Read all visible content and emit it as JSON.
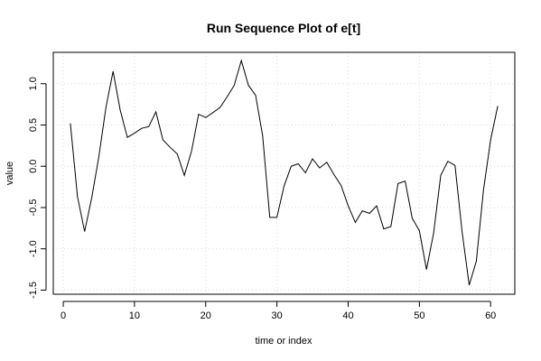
{
  "chart_data": {
    "type": "line",
    "title": "Run Sequence Plot of e[t]",
    "xlabel": "time or index",
    "ylabel": "value",
    "xlim": [
      -1.4,
      63.4
    ],
    "ylim": [
      -1.55,
      1.38
    ],
    "xticks": [
      0,
      10,
      20,
      30,
      40,
      50,
      60
    ],
    "xtick_labels": [
      "0",
      "10",
      "20",
      "30",
      "40",
      "50",
      "60"
    ],
    "yticks": [
      -1.5,
      -1.0,
      -0.5,
      0.0,
      0.5,
      1.0
    ],
    "ytick_labels": [
      "-1.5",
      "-1.0",
      "-0.5",
      "0.0",
      "0.5",
      "1.0"
    ],
    "grid": true,
    "series": [
      {
        "x": [
          1,
          2,
          3,
          4,
          5,
          6,
          7,
          8,
          9,
          10,
          11,
          12,
          13,
          14,
          15,
          16,
          17,
          18,
          19,
          20,
          21,
          22,
          23,
          24,
          25,
          26,
          27,
          28,
          29,
          30,
          31,
          32,
          33,
          34,
          35,
          36,
          37,
          38,
          39,
          40,
          41,
          42,
          43,
          44,
          45,
          46,
          47,
          48,
          49,
          50,
          51,
          52,
          53,
          54,
          55,
          56,
          57,
          58,
          59,
          60,
          61
        ],
        "values": [
          0.52,
          -0.37,
          -0.79,
          -0.38,
          0.12,
          0.72,
          1.15,
          0.68,
          0.35,
          0.4,
          0.46,
          0.48,
          0.66,
          0.32,
          0.23,
          0.15,
          -0.11,
          0.18,
          0.63,
          0.59,
          0.65,
          0.71,
          0.84,
          0.98,
          1.28,
          0.98,
          0.86,
          0.37,
          -0.62,
          -0.62,
          -0.24,
          0.0,
          0.03,
          -0.08,
          0.09,
          -0.02,
          0.05,
          -0.1,
          -0.23,
          -0.48,
          -0.68,
          -0.54,
          -0.57,
          -0.48,
          -0.76,
          -0.73,
          -0.21,
          -0.18,
          -0.63,
          -0.78,
          -1.25,
          -0.81,
          -0.11,
          0.06,
          0.01,
          -0.79,
          -1.44,
          -1.15,
          -0.29,
          0.32,
          0.73
        ]
      }
    ]
  }
}
